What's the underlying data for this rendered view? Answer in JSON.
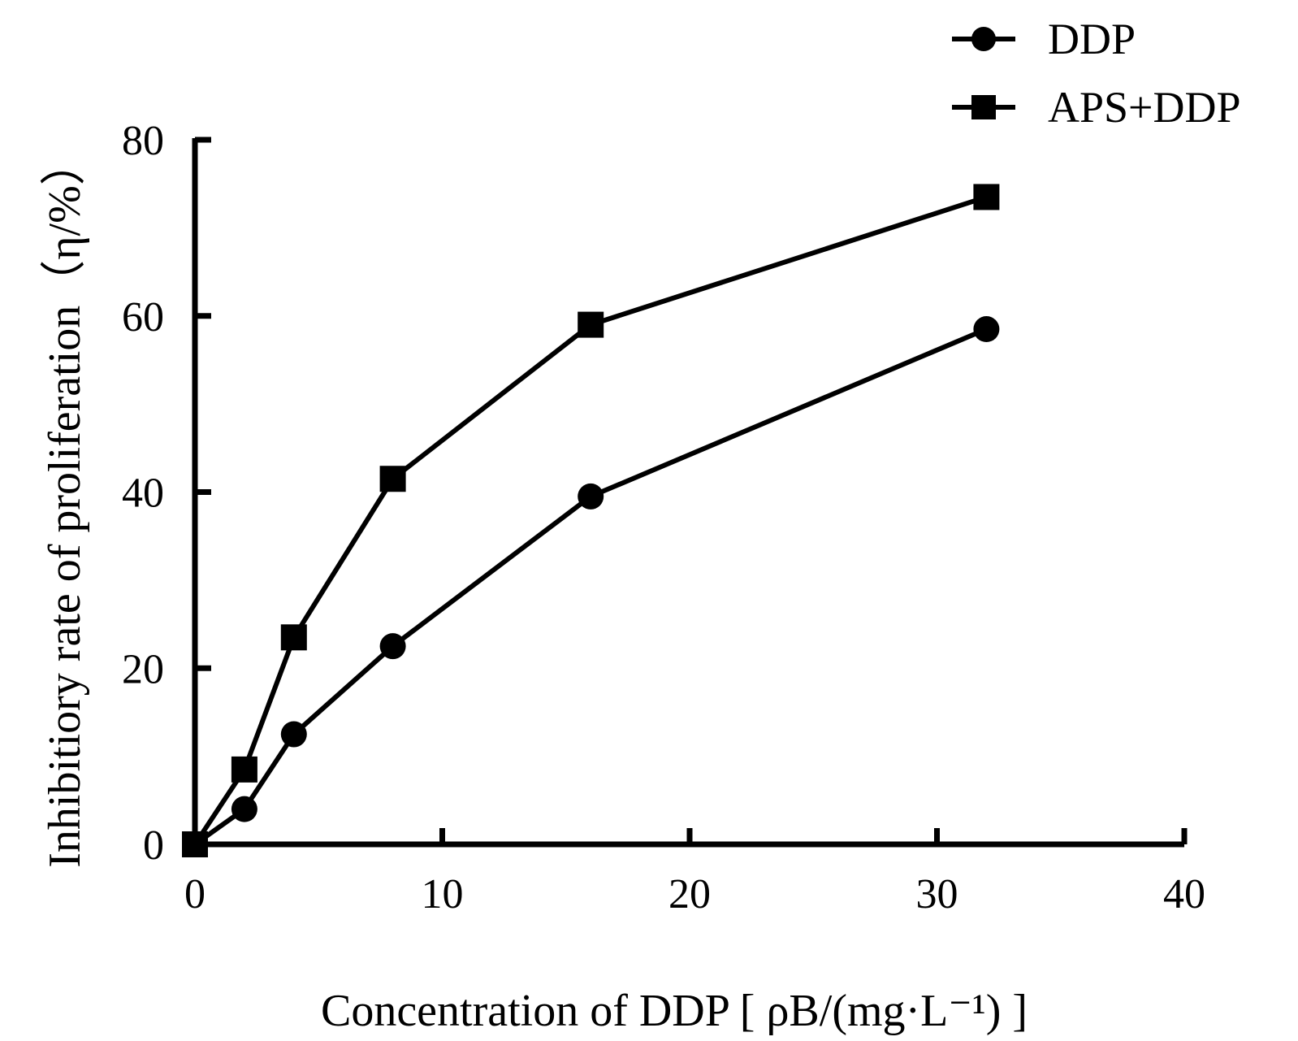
{
  "chart_data": {
    "type": "line",
    "title": "",
    "xlabel": "Concentration of DDP [ ρB/(mg·L⁻¹) ]",
    "ylabel": "Inhibitiory rate of proliferation（η/%）",
    "xlim": [
      0,
      40
    ],
    "ylim": [
      0,
      80
    ],
    "xticks": [
      "0",
      "10",
      "20",
      "30",
      "40"
    ],
    "yticks": [
      "0",
      "20",
      "40",
      "60",
      "80"
    ],
    "grid": false,
    "legend_position": "top-right",
    "series": [
      {
        "name": "DDP",
        "marker": "circle",
        "color": "#000000",
        "x": [
          0,
          2,
          4,
          8,
          16,
          32
        ],
        "y": [
          0,
          4,
          12.5,
          22.5,
          39.5,
          58.5
        ]
      },
      {
        "name": "APS+DDP",
        "marker": "square",
        "color": "#000000",
        "x": [
          0,
          2,
          4,
          8,
          16,
          32
        ],
        "y": [
          0,
          8.5,
          23.5,
          41.5,
          59,
          73.5
        ]
      }
    ]
  }
}
